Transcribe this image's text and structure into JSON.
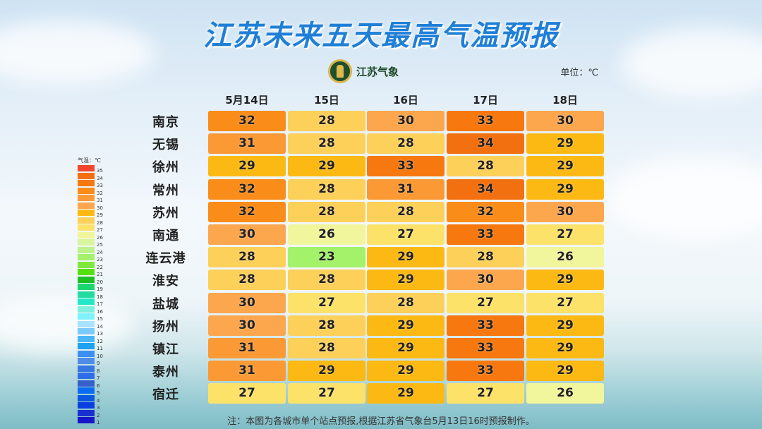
{
  "title": "江苏未来五天最高气温预报",
  "logo_text": "江苏气象",
  "unit": "单位：℃",
  "footnote": "注：本图为各城市单个站点预报,根据江苏省气象台5月13日16时预报制作。",
  "chart_data": {
    "type": "heatmap",
    "title": "江苏未来五天最高气温预报",
    "columns": [
      "5月14日",
      "15日",
      "16日",
      "17日",
      "18日"
    ],
    "rows": [
      "南京",
      "无锡",
      "徐州",
      "常州",
      "苏州",
      "南通",
      "连云港",
      "淮安",
      "盐城",
      "扬州",
      "镇江",
      "泰州",
      "宿迁"
    ],
    "values": [
      [
        32,
        28,
        30,
        33,
        30
      ],
      [
        31,
        28,
        28,
        34,
        29
      ],
      [
        29,
        29,
        33,
        28,
        29
      ],
      [
        32,
        28,
        31,
        34,
        29
      ],
      [
        32,
        28,
        28,
        32,
        30
      ],
      [
        30,
        26,
        27,
        33,
        27
      ],
      [
        28,
        23,
        29,
        28,
        26
      ],
      [
        28,
        28,
        29,
        30,
        29
      ],
      [
        30,
        27,
        28,
        27,
        27
      ],
      [
        30,
        28,
        29,
        33,
        29
      ],
      [
        31,
        28,
        29,
        33,
        29
      ],
      [
        31,
        29,
        29,
        33,
        29
      ],
      [
        27,
        27,
        29,
        27,
        26
      ]
    ],
    "legend": {
      "title": "气温：℃",
      "levels": [
        35,
        34,
        33,
        32,
        31,
        30,
        29,
        28,
        27,
        26,
        25,
        24,
        23,
        22,
        21,
        20,
        19,
        18,
        17,
        16,
        15,
        14,
        13,
        12,
        11,
        10,
        9,
        8,
        7,
        6,
        5,
        4,
        3,
        2,
        1
      ]
    },
    "colors": {
      "35": "#f2452e",
      "34": "#f37010",
      "33": "#f7780f",
      "32": "#fa8c1a",
      "31": "#fb9a35",
      "30": "#fca64e",
      "29": "#fdb913",
      "28": "#fdd05a",
      "27": "#fde26a",
      "26": "#f1f59b",
      "25": "#d8f5a0",
      "24": "#bdf28a",
      "23": "#a3f26a",
      "22": "#7ee83c",
      "21": "#55e010",
      "20": "#1fbf24",
      "19": "#19d66e",
      "18": "#22dca0",
      "17": "#22e8c8",
      "16": "#7ff0e0",
      "15": "#7ef2ff",
      "14": "#a8e2ff",
      "13": "#7ccaf9",
      "12": "#4ab6f5",
      "11": "#1fa3f0",
      "10": "#3c8ff0",
      "9": "#4e8ce8",
      "8": "#3678e0",
      "7": "#2f6ee8",
      "6": "#3660cc",
      "5": "#0a6cf0",
      "4": "#0a58e0",
      "3": "#0a3ee0",
      "2": "#1b2fd0",
      "1": "#1616c8",
      "0": "#1010c0"
    }
  }
}
